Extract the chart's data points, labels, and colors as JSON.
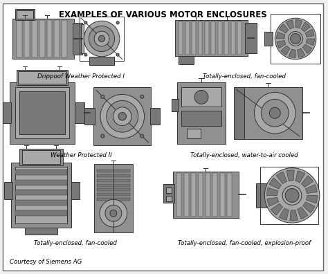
{
  "title": "EXAMPLES OF VARIOUS MOTOR ENCLOSURES",
  "title_fontsize": 8.5,
  "title_fontweight": "bold",
  "background_color": "#f0f0f0",
  "border_color": "#555555",
  "motor_color": "#909090",
  "motor_color2": "#a8a8a8",
  "motor_color3": "#787878",
  "motor_edge_color": "#333333",
  "labels": [
    "Drippoof Weather Protected I",
    "Totally-enclosed, fan-cooled",
    "Weather Protected II",
    "Totally-enclosed, water-to-air cooled",
    "Totally-enclosed, fan-cooled",
    "Totally-enclosed, fan-cooled, explosion-proof"
  ],
  "label_fontsize": 6.2,
  "courtesy_text": "Courtesy of Siemens AG",
  "courtesy_fontsize": 6.2,
  "fig_width": 4.74,
  "fig_height": 3.96,
  "dpi": 100
}
